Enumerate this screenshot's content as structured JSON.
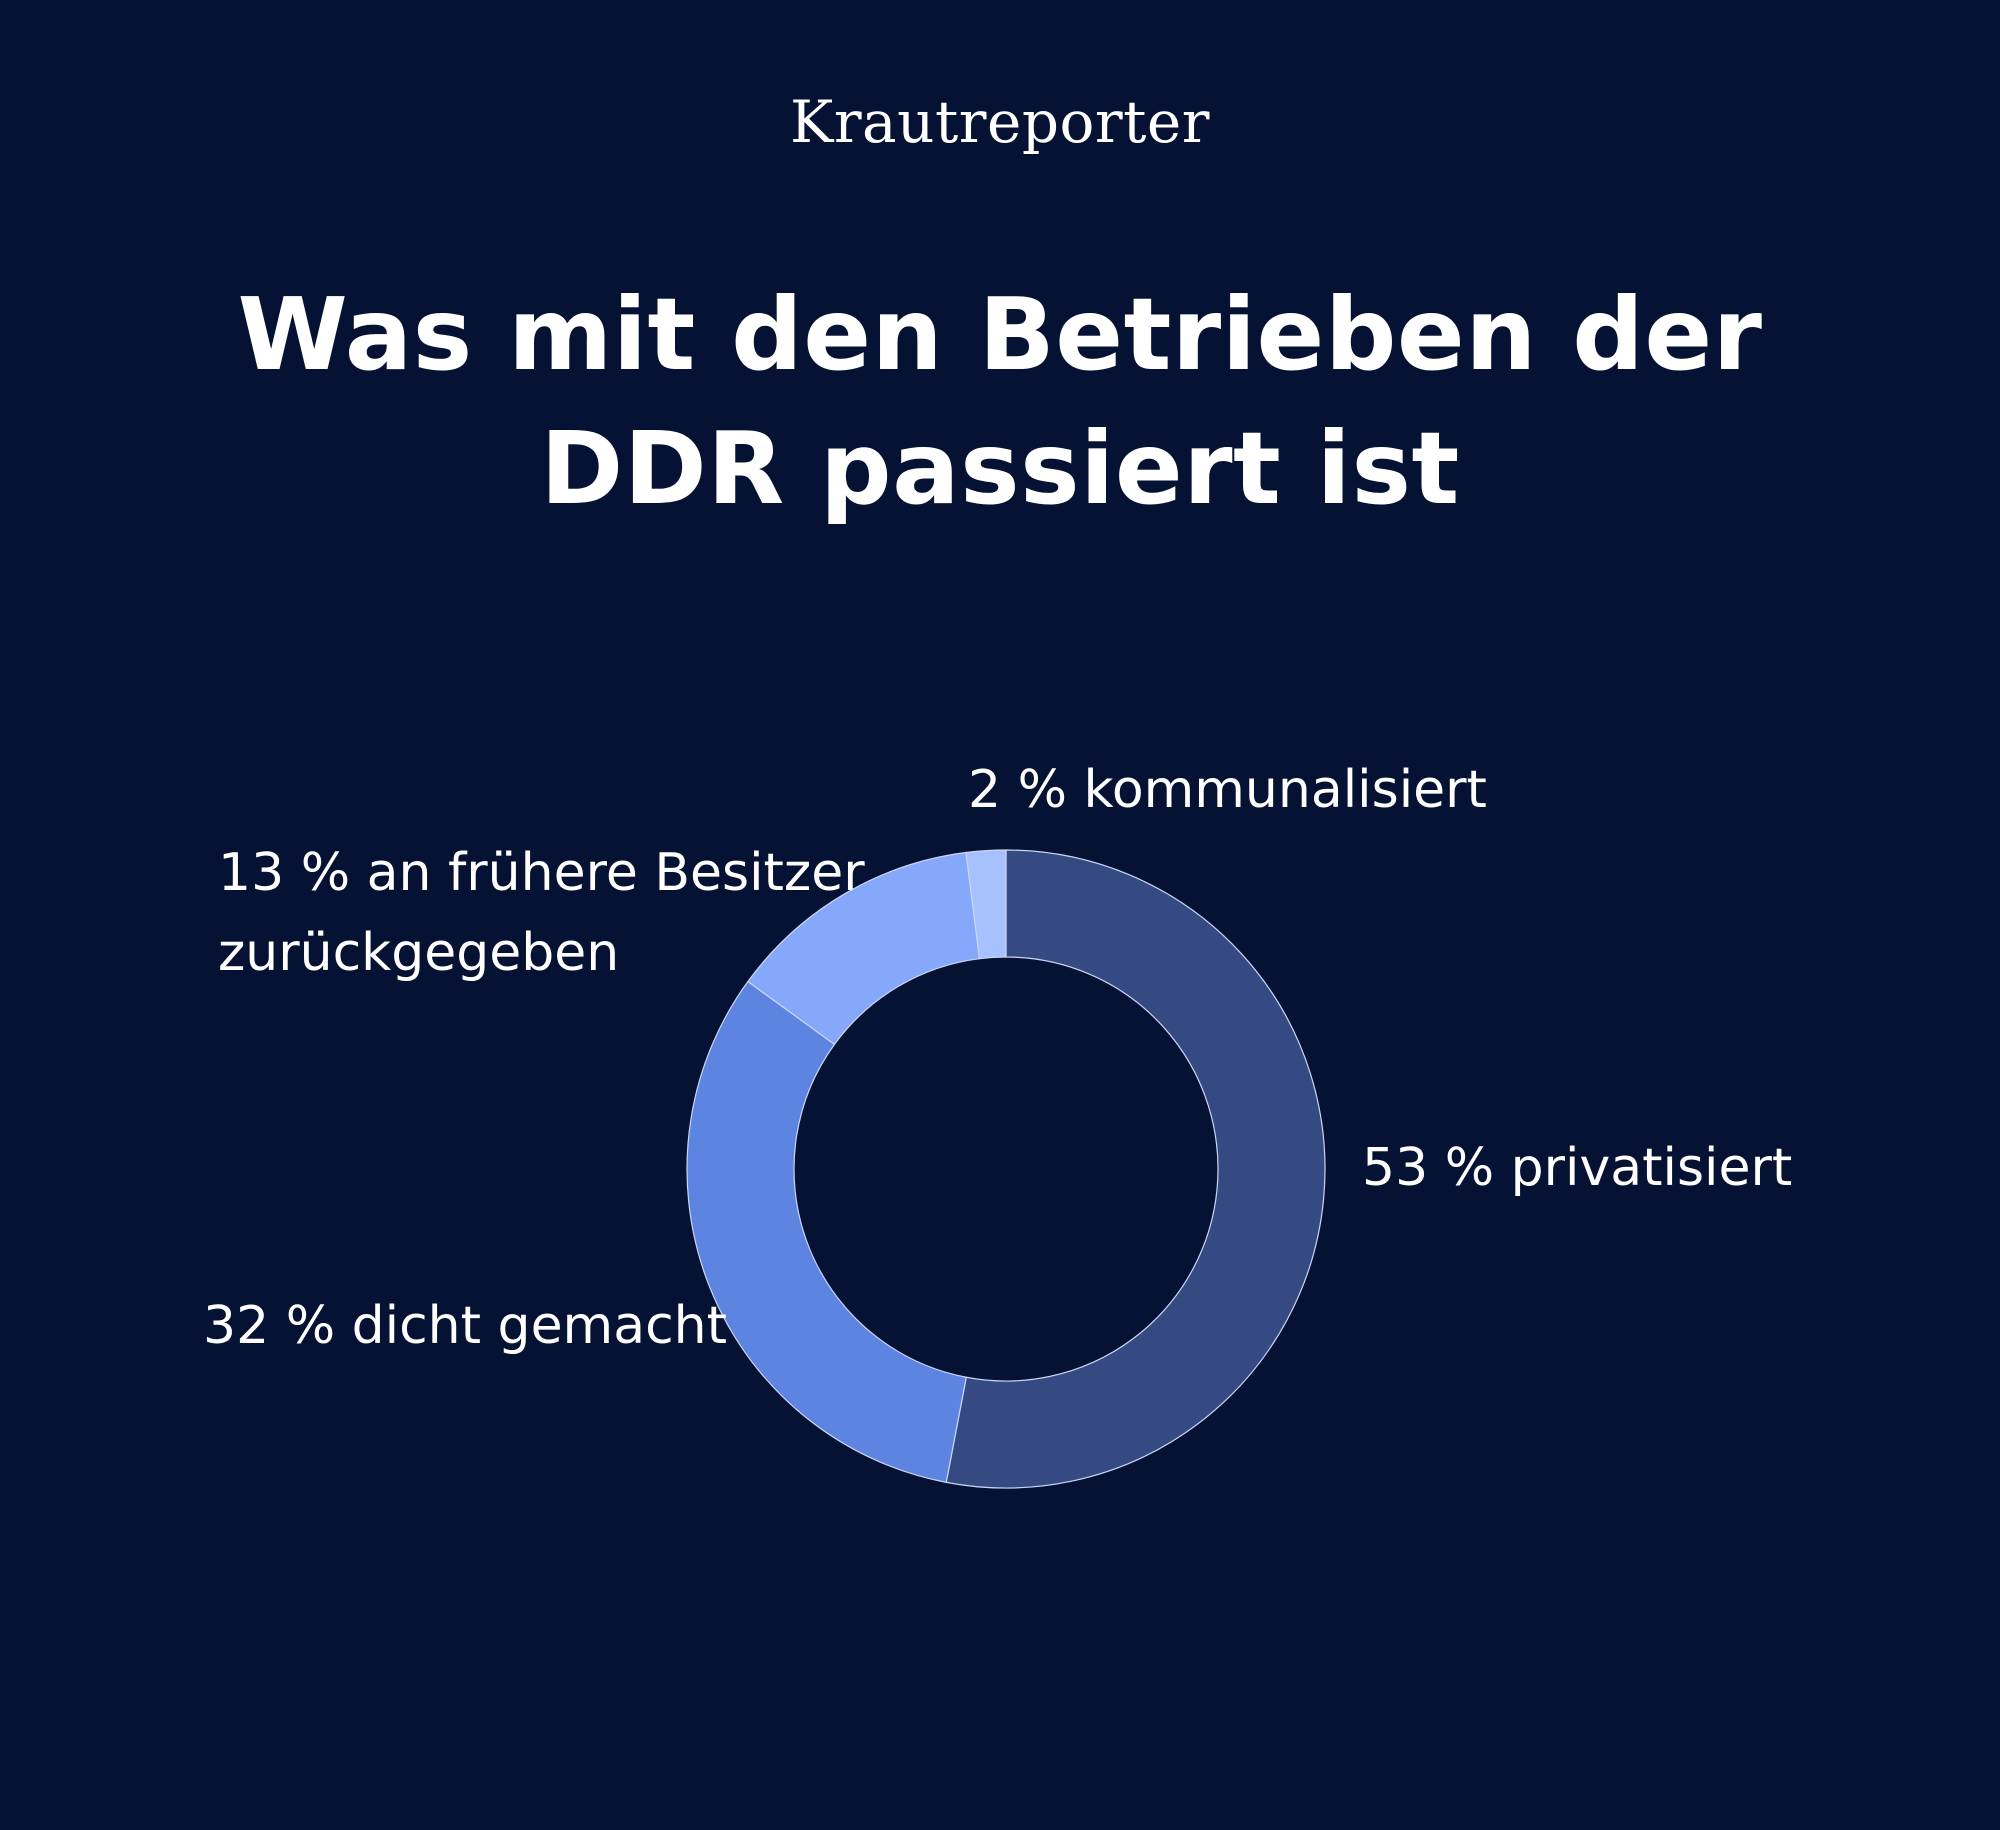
{
  "brand": "Krautreporter",
  "title": "Was mit den Betrieben der DDR passiert ist",
  "chart_data": {
    "type": "pie",
    "variant": "donut",
    "title": "Was mit den Betrieben der DDR passiert ist",
    "unit": "%",
    "start": "top, clockwise",
    "slices": [
      {
        "label": "53 % privatisiert",
        "line1": "53 % privatisiert",
        "line2": "",
        "value": 53,
        "color": "#354a82"
      },
      {
        "label": "32 % dicht gemacht",
        "line1": "32 % dicht gemacht",
        "line2": "",
        "value": 32,
        "color": "#5e84e2"
      },
      {
        "label": "13 % an frühere Besitzer zurückgegeben",
        "line1": "13 % an frühere Besitzer",
        "line2": "zurückgegeben",
        "value": 13,
        "color": "#85a8fb"
      },
      {
        "label": "2 % kommunalisiert",
        "line1": "2 % kommunalisiert",
        "line2": "",
        "value": 2,
        "color": "#a7c1ff"
      }
    ]
  },
  "colors": {
    "background": "#061233",
    "text": "#ffffff",
    "slice_border": "#c9d6f5"
  }
}
